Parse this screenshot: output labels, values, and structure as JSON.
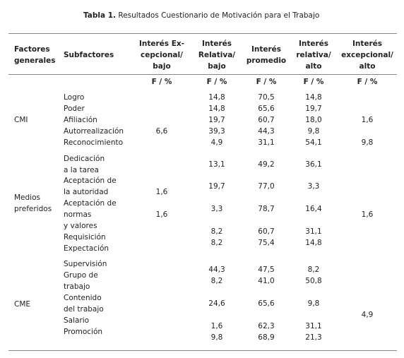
{
  "title": {
    "label": "Tabla 1.",
    "text": "Resultados Cuestionario de Motivación para el Trabajo"
  },
  "header": [
    [
      "Factores",
      "generales"
    ],
    [
      "Subfactores"
    ],
    [
      "Interés Ex-",
      "cepcional/",
      "bajo"
    ],
    [
      "Interés",
      "Relativa/",
      "bajo"
    ],
    [
      "Interés",
      "promedio"
    ],
    [
      "Interés",
      "relativa/",
      "alto"
    ],
    [
      "Interés",
      "excepcional/",
      "alto"
    ]
  ],
  "unit_row": [
    "F / %",
    "F / %",
    "F / %",
    "F / %",
    "F / %"
  ],
  "groups": [
    {
      "factor": [
        "CMI"
      ],
      "subfactors": [
        "Logro",
        "Poder",
        "Afiliación",
        "Autorrealización",
        "Reconocimiento"
      ],
      "values": [
        [
          "6,6"
        ],
        [
          "14,8",
          "14,8",
          "19,7",
          "39,3",
          "4,9"
        ],
        [
          "70,5",
          "65,6",
          "60,7",
          "44,3",
          "31,1"
        ],
        [
          "14,8",
          "19,7",
          "18,0",
          "9,8",
          "54,1"
        ],
        [
          "1,6",
          "9,8"
        ]
      ]
    },
    {
      "factor": [
        "Medios",
        "preferidos"
      ],
      "subfactors": [
        "Dedicación",
        "a la tarea",
        "Aceptación de",
        "la autoridad",
        "Aceptación de",
        "normas",
        "y valores",
        "Requisición",
        "Expectación"
      ],
      "values": [
        [
          "1,6",
          "1,6"
        ],
        [
          "13,1",
          "19,7",
          "3,3",
          "8,2",
          "8,2"
        ],
        [
          "49,2",
          "77,0",
          "78,7",
          "60,7",
          "75,4"
        ],
        [
          "36,1",
          "3,3",
          "16,4",
          "31,1",
          "14,8"
        ],
        [
          "1,6"
        ]
      ]
    },
    {
      "factor": [
        "CME"
      ],
      "subfactors": [
        "Supervisión",
        "Grupo de",
        "trabajo",
        "Contenido",
        "del trabajo",
        "Salario",
        "Promoción"
      ],
      "values": [
        [],
        [
          "44,3",
          "8,2",
          "24,6",
          "1,6",
          "9,8"
        ],
        [
          "47,5",
          "41,0",
          "65,6",
          "62,3",
          "68,9"
        ],
        [
          "8,2",
          "50,8",
          "9,8",
          "31,1",
          "21,3"
        ],
        [
          "4,9"
        ]
      ]
    }
  ]
}
